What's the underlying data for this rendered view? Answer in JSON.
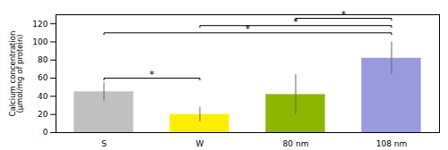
{
  "chart_data": {
    "type": "bar",
    "categories": [
      "S",
      "W",
      "80 nm",
      "108 nm"
    ],
    "values": [
      45,
      20,
      42,
      82
    ],
    "errors": [
      10,
      8,
      22,
      18
    ],
    "colors": [
      "#c0c0c0",
      "#ffee00",
      "#8db600",
      "#9999dd"
    ],
    "ylabel": "Calcium concentration\n(μmol/mg of protein)",
    "ylim": [
      0,
      130
    ],
    "yticks": [
      0,
      20,
      40,
      60,
      80,
      100,
      120
    ],
    "grid": false,
    "brackets": [
      {
        "from": "S",
        "to": "W",
        "y": 58,
        "label": "*"
      },
      {
        "from": "S",
        "to": "108 nm",
        "y": 108,
        "label": "*"
      },
      {
        "from": "W",
        "to": "108 nm",
        "y": 116,
        "label": "*"
      },
      {
        "from": "80 nm",
        "to": "108 nm",
        "y": 124,
        "label": "*"
      }
    ]
  }
}
